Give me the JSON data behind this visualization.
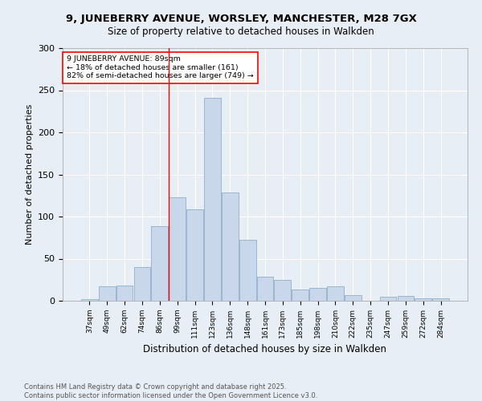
{
  "title": "9, JUNEBERRY AVENUE, WORSLEY, MANCHESTER, M28 7GX",
  "subtitle": "Size of property relative to detached houses in Walkden",
  "xlabel": "Distribution of detached houses by size in Walkden",
  "ylabel": "Number of detached properties",
  "bar_color": "#c8d8ea",
  "bar_edge_color": "#9ab5cc",
  "background_color": "#e8eef5",
  "grid_color": "#ffffff",
  "categories": [
    "37sqm",
    "49sqm",
    "62sqm",
    "74sqm",
    "86sqm",
    "99sqm",
    "111sqm",
    "123sqm",
    "136sqm",
    "148sqm",
    "161sqm",
    "173sqm",
    "185sqm",
    "198sqm",
    "210sqm",
    "222sqm",
    "235sqm",
    "247sqm",
    "259sqm",
    "272sqm",
    "284sqm"
  ],
  "values": [
    2,
    17,
    18,
    40,
    89,
    123,
    109,
    241,
    129,
    72,
    29,
    25,
    13,
    15,
    17,
    7,
    0,
    5,
    6,
    3,
    3
  ],
  "vline_x": 4.5,
  "annotation_text": "9 JUNEBERRY AVENUE: 89sqm\n← 18% of detached houses are smaller (161)\n82% of semi-detached houses are larger (749) →",
  "footnote": "Contains HM Land Registry data © Crown copyright and database right 2025.\nContains public sector information licensed under the Open Government Licence v3.0.",
  "ylim": [
    0,
    300
  ],
  "yticks": [
    0,
    50,
    100,
    150,
    200,
    250,
    300
  ]
}
